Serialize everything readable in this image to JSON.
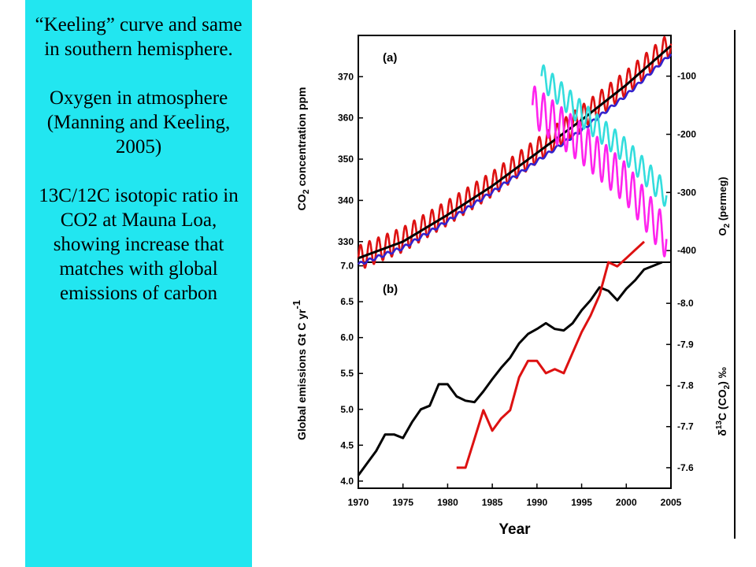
{
  "caption": {
    "para1": "“Keeling” curve and same in southern hemisphere.",
    "para2": "Oxygen in atmosphere (Manning and Keeling, 2005)",
    "para3": "13C/12C isotopic ratio in CO2 at Mauna Loa, showing increase that matches with global emissions of carbon"
  },
  "colors": {
    "panel_bg": "#22e6f0",
    "co2_north": "#dd1111",
    "co2_south": "#3322cc",
    "co2_fit": "#000000",
    "o2_a": "#ff22ee",
    "o2_b": "#33dddd",
    "emissions": "#000000",
    "d13c": "#dd1111"
  },
  "chart_data": [
    {
      "type": "line",
      "panel_label": "(a)",
      "xlim": [
        1970,
        2005
      ],
      "ylabel_left": "CO2 concentration ppm",
      "ylim_left": [
        325,
        380
      ],
      "yticks_left": [
        "330",
        "340",
        "350",
        "360",
        "370"
      ],
      "ylabel_right": "O2 (permeg)",
      "ylim_right": [
        -420,
        -30
      ],
      "yticks_right": [
        "-100",
        "-200",
        "-300",
        "-400"
      ],
      "series": [
        {
          "axis": "left",
          "style": "seasonal",
          "color_key": "co2_north",
          "x": [
            1970,
            1975,
            1980,
            1985,
            1990,
            1995,
            2000,
            2005
          ],
          "y": [
            326,
            330.5,
            337,
            344,
            352,
            360,
            368.5,
            378
          ],
          "amplitude": 3.0
        },
        {
          "axis": "left",
          "style": "seasonal",
          "color_key": "co2_south",
          "x": [
            1970,
            1975,
            1980,
            1985,
            1990,
            1995,
            2000,
            2005
          ],
          "y": [
            324.5,
            328.5,
            335,
            342,
            349.5,
            357,
            365.5,
            375.5
          ],
          "amplitude": 0.4
        },
        {
          "axis": "left",
          "style": "smooth",
          "color_key": "co2_fit",
          "x": [
            1970,
            1975,
            1980,
            1985,
            1990,
            1995,
            2000,
            2005
          ],
          "y": [
            326,
            330,
            336.5,
            343.5,
            351.5,
            359.5,
            368,
            377.5
          ]
        },
        {
          "axis": "right",
          "style": "seasonal",
          "color_key": "o2_a",
          "x": [
            1989.5,
            1995,
            2000,
            2004.5
          ],
          "y": [
            -150,
            -215,
            -285,
            -380
          ],
          "amplitude": 35
        },
        {
          "axis": "right",
          "style": "seasonal",
          "color_key": "o2_b",
          "x": [
            1990.5,
            1995,
            2000,
            2004.5
          ],
          "y": [
            -100,
            -165,
            -230,
            -305
          ],
          "amplitude": 22
        }
      ]
    },
    {
      "type": "line",
      "panel_label": "(b)",
      "xlim": [
        1970,
        2005
      ],
      "xlabel": "Year",
      "xticks": [
        "1970",
        "1975",
        "1980",
        "1985",
        "1990",
        "1995",
        "2000",
        "2005"
      ],
      "ylabel_left": "Global emissions Gt C yr-1",
      "ylim_left": [
        3.9,
        7.05
      ],
      "yticks_left": [
        "4.0",
        "4.5",
        "5.0",
        "5.5",
        "6.0",
        "6.5",
        "7.0"
      ],
      "ylabel_right": "δ13C (CO2) ‰",
      "ylim_right": [
        -7.55,
        -8.1
      ],
      "yticks_right": [
        "-8.0",
        "-7.9",
        "-7.8",
        "-7.7",
        "-7.6"
      ],
      "series": [
        {
          "axis": "left",
          "color_key": "emissions",
          "x": [
            1970,
            1971,
            1972,
            1973,
            1974,
            1975,
            1976,
            1977,
            1978,
            1979,
            1980,
            1981,
            1982,
            1983,
            1984,
            1985,
            1986,
            1987,
            1988,
            1989,
            1990,
            1991,
            1992,
            1993,
            1994,
            1995,
            1996,
            1997,
            1998,
            1999,
            2000,
            2001,
            2002,
            2003,
            2004
          ],
          "y": [
            4.08,
            4.25,
            4.42,
            4.65,
            4.65,
            4.6,
            4.82,
            5.0,
            5.05,
            5.35,
            5.35,
            5.18,
            5.12,
            5.1,
            5.25,
            5.42,
            5.58,
            5.72,
            5.92,
            6.05,
            6.12,
            6.2,
            6.12,
            6.1,
            6.2,
            6.38,
            6.52,
            6.7,
            6.65,
            6.52,
            6.68,
            6.8,
            6.95,
            7.0,
            7.05
          ]
        },
        {
          "axis": "right",
          "color_key": "d13c",
          "x": [
            1981,
            1982,
            1983,
            1984,
            1985,
            1986,
            1987,
            1988,
            1989,
            1990,
            1991,
            1992,
            1993,
            1994,
            1995,
            1996,
            1997,
            1998,
            1999,
            2000,
            2001,
            2002
          ],
          "y": [
            -7.6,
            -7.6,
            -7.67,
            -7.74,
            -7.69,
            -7.72,
            -7.74,
            -7.82,
            -7.86,
            -7.86,
            -7.83,
            -7.84,
            -7.83,
            -7.88,
            -7.93,
            -7.97,
            -8.02,
            -8.1,
            -8.09,
            -8.11,
            -8.13,
            -8.15
          ]
        }
      ]
    }
  ]
}
